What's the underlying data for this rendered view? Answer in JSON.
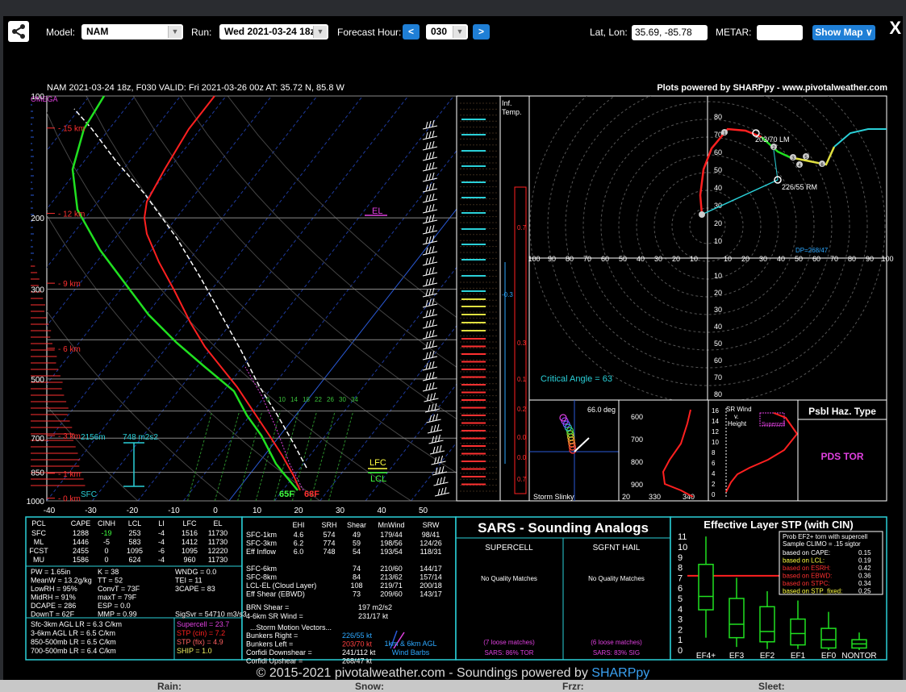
{
  "toolbar": {
    "model_label": "Model:",
    "model_value": "NAM",
    "run_label": "Run:",
    "run_value": "Wed 2021-03-24 18z",
    "fhour_label": "Forecast Hour:",
    "fhour_value": "030",
    "prev_label": "<",
    "next_label": ">",
    "latlon_label": "Lat, Lon:",
    "latlon_value": "35.69, -85.78",
    "metar_label": "METAR:",
    "metar_value": "",
    "showmap_label": "Show Map ∨",
    "close_label": "X"
  },
  "header": {
    "title": "NAM 2021-03-24 18z, F030  VALID: Fri 2021-03-26 00z  AT: 35.72 N, 85.8 W",
    "credit": "Plots powered by SHARPpy - www.pivotalweather.com"
  },
  "skewt": {
    "omega_label": "OMEGA",
    "pressure_labels": [
      {
        "p": 100,
        "label": "100"
      },
      {
        "p": 200,
        "label": "200"
      },
      {
        "p": 300,
        "label": "300"
      },
      {
        "p": 500,
        "label": "500"
      },
      {
        "p": 700,
        "label": "700"
      },
      {
        "p": 850,
        "label": "850"
      },
      {
        "p": 1000,
        "label": "1000"
      }
    ],
    "height_labels": [
      "15 km",
      "12 km",
      "9 km",
      "6 km",
      "3 km",
      "1 km",
      "0 km"
    ],
    "temp_ticks": [
      "-40",
      "-30",
      "-20",
      "-10",
      "0",
      "10",
      "20",
      "30",
      "40",
      "50"
    ],
    "mixing_ratio_labels": [
      "6",
      "10",
      "14",
      "18",
      "22",
      "26",
      "30",
      "34"
    ],
    "el_label": "EL",
    "lfc_label": "LFC",
    "lcl_label": "LCL",
    "sfc_label": "SFC",
    "dew_label": "65F",
    "temp_label": "68F",
    "srh_depth": "2156m",
    "srh_value": "748 m2s2"
  },
  "inferred_temp": {
    "title1": "Inf.",
    "title2": "Temp.",
    "values": [
      "0.7",
      "-0.3",
      "0.3",
      "0.1",
      "0.2",
      "0.0",
      "0.0",
      "0.7"
    ]
  },
  "hodograph": {
    "ring_labels": [
      "10",
      "20",
      "30",
      "40",
      "50",
      "60",
      "70",
      "80"
    ],
    "x_labels": [
      "100",
      "90",
      "80",
      "70",
      "60",
      "50",
      "40",
      "30",
      "20",
      "10",
      "10",
      "20",
      "30",
      "40",
      "50",
      "60",
      "70",
      "80",
      "90",
      "100"
    ],
    "lm_label": "203/70 LM",
    "rm_label": "226/55 RM",
    "dp_label": "DP=268/47",
    "critical_angle": "Critical Angle = 63",
    "height_markers": [
      "1",
      "2",
      "3",
      "4",
      "5",
      "6"
    ]
  },
  "slinky": {
    "angle": "66.0 deg",
    "title": "Storm Slinky"
  },
  "theta": {
    "y_labels": [
      "600",
      "700",
      "800",
      "900"
    ],
    "x_labels": [
      "20",
      "330",
      "340"
    ]
  },
  "srwind": {
    "title1": "SR Wind",
    "title2": "v.",
    "title3": "Height",
    "y_labels": [
      "16",
      "14",
      "12",
      "10",
      "8",
      "6",
      "4",
      "2",
      "0"
    ],
    "supercell_label": "Supercell"
  },
  "hazard": {
    "title": "Psbl Haz. Type",
    "value": "PDS TOR"
  },
  "parcels": {
    "headers": [
      "PCL",
      "CAPE",
      "CINH",
      "LCL",
      "LI",
      "LFC",
      "EL"
    ],
    "rows": [
      [
        "SFC",
        "1288",
        "-19",
        "253",
        "-4",
        "1516",
        "11730"
      ],
      [
        "ML",
        "1446",
        "-5",
        "583",
        "-4",
        "1412",
        "11730"
      ],
      [
        "FCST",
        "2455",
        "0",
        "1095",
        "-6",
        "1095",
        "12220"
      ],
      [
        "MU",
        "1586",
        "0",
        "624",
        "-4",
        "960",
        "11730"
      ]
    ],
    "stats_col1": [
      "PW = 1.65in",
      "MeanW = 13.2g/kg",
      "LowRH = 95%",
      "MidRH = 91%",
      "DCAPE = 286",
      "DownT = 62F"
    ],
    "stats_col2": [
      "K = 38",
      "TT = 52",
      "ConvT = 73F",
      "maxT = 79F",
      "ESP = 0.0",
      "MMP = 0.99"
    ],
    "stats_col3": [
      "WNDG = 0.0",
      "TEI = 11",
      "3CAPE = 83",
      "",
      "",
      "SigSvr = 54710 m3/s3"
    ],
    "lapse": [
      "Sfc-3km AGL LR = 6.3 C/km",
      "3-6km AGL LR = 6.5 C/km",
      "850-500mb LR = 6.5 C/km",
      "700-500mb LR = 6.4 C/km"
    ],
    "composites": [
      {
        "text": "Supercell = 23.7",
        "color": "#e040e0"
      },
      {
        "text": "STP (cin) = 7.2",
        "color": "#ff2020"
      },
      {
        "text": "STP (fix) = 4.9",
        "color": "#ff6060"
      },
      {
        "text": "SHIP = 1.0",
        "color": "#f0f060"
      }
    ]
  },
  "kinematics": {
    "headers": [
      "EHI",
      "SRH",
      "Shear",
      "MnWind",
      "SRW"
    ],
    "rows": [
      [
        "SFC-1km",
        "4.6",
        "574",
        "49",
        "179/44",
        "98/41"
      ],
      [
        "SFC-3km",
        "6.2",
        "774",
        "59",
        "198/56",
        "124/26"
      ],
      [
        "Eff Inflow",
        "6.0",
        "748",
        "54",
        "193/54",
        "118/31"
      ],
      [
        "",
        "",
        "",
        "",
        "",
        ""
      ],
      [
        "SFC-6km",
        "",
        "",
        "74",
        "210/60",
        "144/17"
      ],
      [
        "SFC-8km",
        "",
        "",
        "84",
        "213/62",
        "157/14"
      ],
      [
        "LCL-EL (Cloud Layer)",
        "",
        "",
        "108",
        "219/71",
        "200/18"
      ],
      [
        "Eff Shear (EBWD)",
        "",
        "",
        "73",
        "209/60",
        "143/17"
      ]
    ],
    "brn": [
      "BRN Shear =",
      "197 m2/s2"
    ],
    "sr6": [
      "4-6km SR Wind =",
      "231/17 kt"
    ],
    "motion_title": "...Storm Motion Vectors...",
    "motions": [
      {
        "label": "Bunkers Right =",
        "value": "226/55 kt",
        "color": "#2da8ff"
      },
      {
        "label": "Bunkers Left =",
        "value": "203/70 kt",
        "color": "#ff4040"
      },
      {
        "label": "Corfidi Downshear =",
        "value": "241/112 kt",
        "color": "#ffffff"
      },
      {
        "label": "Corfidi Upshear =",
        "value": "268/47 kt",
        "color": "#ffffff"
      }
    ],
    "barbs_label1": "1km & 6km AGL",
    "barbs_label2": "Wind Barbs"
  },
  "sars": {
    "title": "SARS - Sounding Analogs",
    "col1_title": "SUPERCELL",
    "col2_title": "SGFNT HAIL",
    "col1_matches": "No Quality Matches",
    "col2_matches": "No Quality Matches",
    "col1_loose": "(7 loose matches)",
    "col2_loose": "(6 loose matches)",
    "col1_pct": "SARS: 86% TOR",
    "col2_pct": "SARS: 83% SIG"
  },
  "stp": {
    "title": "Effective Layer STP (with CIN)",
    "y_labels": [
      "0",
      "1",
      "2",
      "3",
      "4",
      "5",
      "6",
      "7",
      "8",
      "9",
      "10",
      "11"
    ],
    "categories": [
      "EF4+",
      "EF3",
      "EF2",
      "EF1",
      "EF0",
      "NONTOR"
    ],
    "box_header1": "Prob EF2+ torn with supercell",
    "box_header2": "Sample CLIMO = .15 sigtor",
    "probs": [
      {
        "label": "based on CAPE:",
        "value": "0.15",
        "color": "#ffffff"
      },
      {
        "label": "based on LCL:",
        "value": "0.19",
        "color": "#ffff40"
      },
      {
        "label": "based on ESRH:",
        "value": "0.42",
        "color": "#ff3030"
      },
      {
        "label": "based on EBWD:",
        "value": "0.36",
        "color": "#ff3030"
      },
      {
        "label": "based on STPC:",
        "value": "0.34",
        "color": "#ff3030"
      },
      {
        "label": "based on STP_fixed:",
        "value": "0.25",
        "color": "#ffff40"
      }
    ]
  },
  "footer": {
    "text": "© 2015-2021 pivotalweather.com - Soundings powered by ",
    "link": "SHARPpy"
  },
  "background_bar": {
    "rain": "Rain:",
    "snow": "Snow:",
    "frzr": "Frzr:",
    "sleet": "Sleet:"
  }
}
